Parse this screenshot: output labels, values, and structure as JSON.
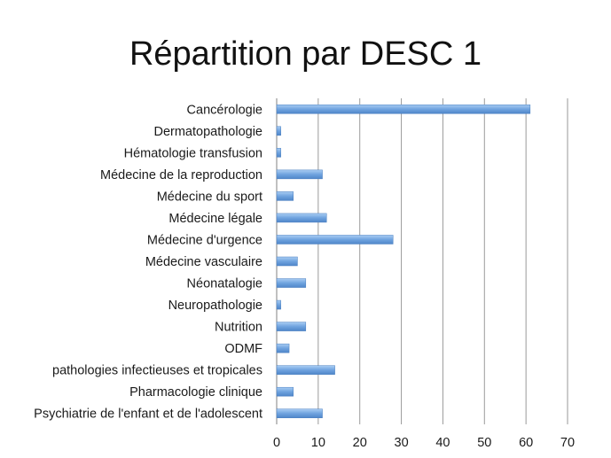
{
  "slide": {
    "title": "Répartition par DESC 1"
  },
  "colors": {
    "bar": "#6fa3df",
    "bar_edge": "#4a7fc0",
    "grid": "#9a9a9a",
    "axis": "#808080"
  },
  "chart_data": {
    "type": "bar",
    "orientation": "horizontal",
    "title": "Répartition par DESC 1",
    "categories": [
      "Cancérologie",
      "Dermatopathologie",
      "Hématologie transfusion",
      "Médecine de la reproduction",
      "Médecine du sport",
      "Médecine légale",
      "Médecine d'urgence",
      "Médecine vasculaire",
      "Néonatalogie",
      "Neuropathologie",
      "Nutrition",
      "ODMF",
      "pathologies infectieuses et tropicales",
      "Pharmacologie clinique",
      "Psychiatrie de l'enfant et de l'adolescent"
    ],
    "values": [
      61,
      1,
      1,
      11,
      4,
      12,
      28,
      5,
      7,
      1,
      7,
      3,
      14,
      4,
      11
    ],
    "xlim": [
      0,
      70
    ],
    "xticks": [
      0,
      10,
      20,
      30,
      40,
      50,
      60,
      70
    ],
    "xlabel": "",
    "ylabel": "",
    "grid": true,
    "legend": "none"
  }
}
